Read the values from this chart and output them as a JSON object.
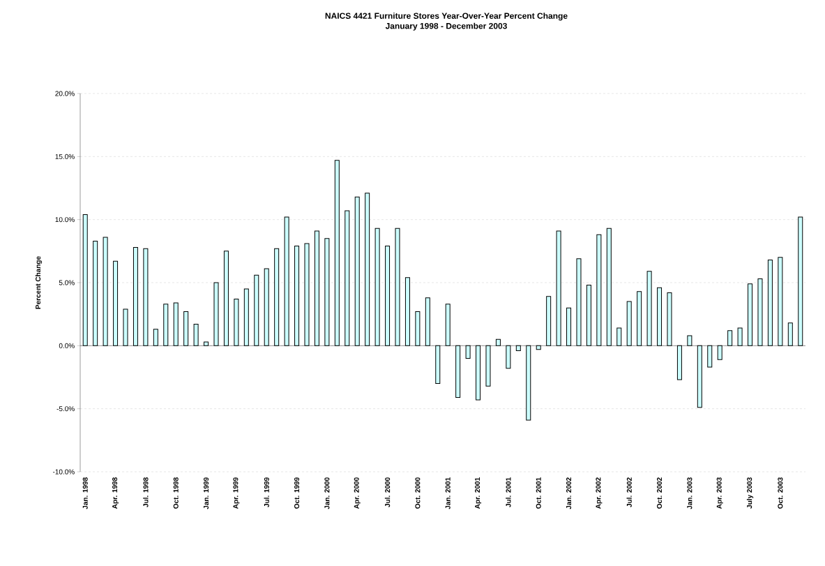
{
  "chart_data": {
    "type": "bar",
    "title": "NAICS 4421 Furniture Stores Year-Over-Year Percent Change",
    "subtitle": "January 1998 - December 2003",
    "ylabel": "Percent Change",
    "categories": [
      "Jan. 1998",
      null,
      null,
      "Apr. 1998",
      null,
      null,
      "Jul. 1998",
      null,
      null,
      "Oct. 1998",
      null,
      null,
      "Jan. 1999",
      null,
      null,
      "Apr. 1999",
      null,
      null,
      "Jul. 1999",
      null,
      null,
      "Oct. 1999",
      null,
      null,
      "Jan. 2000",
      null,
      null,
      "Apr. 2000",
      null,
      null,
      "Jul. 2000",
      null,
      null,
      "Oct. 2000",
      null,
      null,
      "Jan. 2001",
      null,
      null,
      "Apr. 2001",
      null,
      null,
      "Jul. 2001",
      null,
      null,
      "Oct. 2001",
      null,
      null,
      "Jan. 2002",
      null,
      null,
      "Apr. 2002",
      null,
      null,
      "Jul. 2002",
      null,
      null,
      "Oct. 2002",
      null,
      null,
      "Jan. 2003",
      null,
      null,
      "Apr. 2003",
      null,
      null,
      "July 2003",
      null,
      null,
      "Oct. 2003",
      null,
      null
    ],
    "values": [
      10.4,
      8.3,
      8.6,
      6.7,
      2.9,
      7.8,
      7.7,
      1.3,
      3.3,
      3.4,
      2.7,
      1.7,
      0.3,
      5.0,
      7.5,
      3.7,
      4.5,
      5.6,
      6.1,
      7.7,
      10.2,
      7.9,
      8.1,
      9.1,
      8.5,
      14.7,
      10.7,
      11.8,
      12.1,
      9.3,
      7.9,
      9.3,
      5.4,
      2.7,
      3.8,
      -3.0,
      3.3,
      -4.1,
      -1.0,
      -4.3,
      -3.2,
      0.5,
      -1.8,
      -0.4,
      -5.9,
      -0.3,
      3.9,
      9.1,
      3.0,
      6.9,
      4.8,
      8.8,
      9.3,
      1.4,
      3.5,
      4.3,
      5.9,
      4.6,
      4.2,
      -2.7,
      0.8,
      -4.9,
      -1.7,
      -1.1,
      1.2,
      1.4,
      4.9,
      5.3,
      6.8,
      7.0,
      1.8,
      10.2
    ],
    "color": "#ccffff",
    "ylim": [
      -10,
      20
    ],
    "yticks": [
      {
        "value": -10,
        "label": "-10.0%"
      },
      {
        "value": -5,
        "label": "-5.0%"
      },
      {
        "value": 0,
        "label": "0.0%"
      },
      {
        "value": 5,
        "label": "5.0%"
      },
      {
        "value": 10,
        "label": "10.0%"
      },
      {
        "value": 15,
        "label": "15.0%"
      },
      {
        "value": 20,
        "label": "20.0%"
      }
    ],
    "grid": "y"
  }
}
